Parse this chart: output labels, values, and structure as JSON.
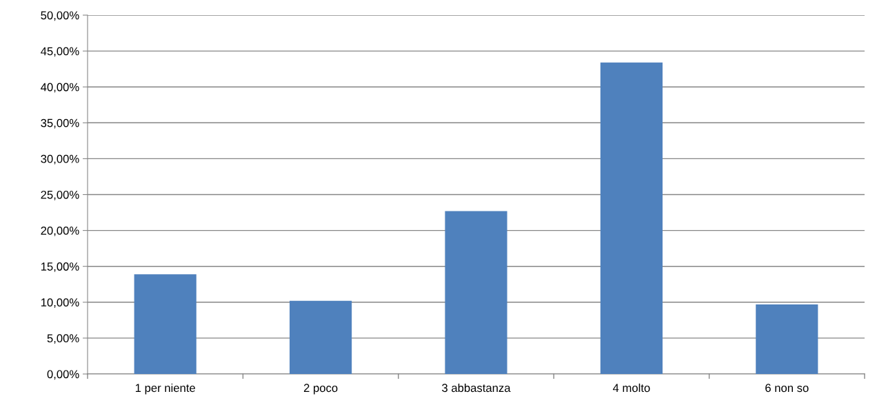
{
  "chart_data": {
    "type": "bar",
    "categories": [
      "1 per niente",
      "2 poco",
      "3 abbastanza",
      "4 molto",
      "6 non so"
    ],
    "values": [
      13.9,
      10.2,
      22.7,
      43.4,
      9.7
    ],
    "color": "#4f81bd",
    "ylim": [
      0,
      50
    ],
    "yticks": [
      {
        "value": 0,
        "label": "0,00%"
      },
      {
        "value": 5,
        "label": "5,00%"
      },
      {
        "value": 10,
        "label": "10,00%"
      },
      {
        "value": 15,
        "label": "15,00%"
      },
      {
        "value": 20,
        "label": "20,00%"
      },
      {
        "value": 25,
        "label": "25,00%"
      },
      {
        "value": 30,
        "label": "30,00%"
      },
      {
        "value": 35,
        "label": "35,00%"
      },
      {
        "value": 40,
        "label": "40,00%"
      },
      {
        "value": 45,
        "label": "45,00%"
      },
      {
        "value": 50,
        "label": "50,00%"
      }
    ],
    "grid": "y",
    "legend": false
  }
}
